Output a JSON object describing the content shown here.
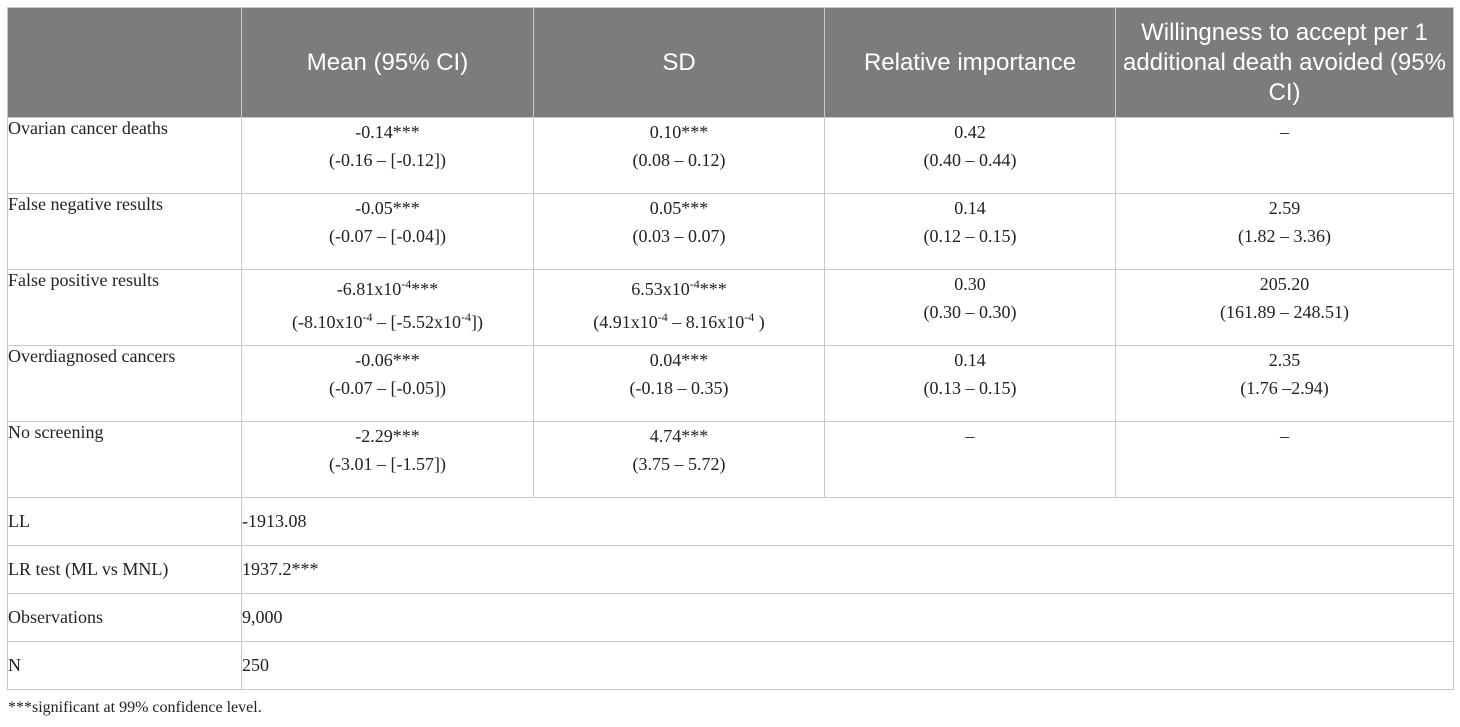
{
  "table": {
    "headers": [
      "",
      "Mean (95% CI)",
      "SD",
      "Relative importance",
      "Willingness to accept per 1 additional death avoided (95% CI)"
    ],
    "rows": [
      {
        "label": "Ovarian cancer deaths",
        "mean": [
          "-0.14***",
          "(-0.16 – [-0.12])"
        ],
        "sd": [
          "0.10***",
          "(0.08 – 0.12)"
        ],
        "ri": [
          "0.42",
          "(0.40 – 0.44)"
        ],
        "wta": [
          "–",
          ""
        ]
      },
      {
        "label": "False negative results",
        "mean": [
          "-0.05***",
          "(-0.07 – [-0.04])"
        ],
        "sd": [
          "0.05***",
          "(0.03 – 0.07)"
        ],
        "ri": [
          "0.14",
          "(0.12 – 0.15)"
        ],
        "wta": [
          "2.59",
          "(1.82 – 3.36)"
        ]
      },
      {
        "label": "False positive results",
        "mean": [
          "-6.81x10-4***",
          "(-8.10x10-4 – [-5.52x10-4])"
        ],
        "sd": [
          "6.53x10-4***",
          "(4.91x10-4 – 8.16x10-4 )"
        ],
        "ri": [
          "0.30",
          "(0.30 – 0.30)"
        ],
        "wta": [
          "205.20",
          "(161.89 – 248.51)"
        ]
      },
      {
        "label": "Overdiagnosed cancers",
        "mean": [
          "-0.06***",
          "(-0.07 – [-0.05])"
        ],
        "sd": [
          "0.04***",
          "(-0.18 – 0.35)"
        ],
        "ri": [
          "0.14",
          "(0.13 – 0.15)"
        ],
        "wta": [
          "2.35",
          "(1.76 –2.94)"
        ]
      },
      {
        "label": "No screening",
        "mean": [
          "-2.29***",
          "(-3.01 – [-1.57])"
        ],
        "sd": [
          "4.74***",
          "(3.75 – 5.72)"
        ],
        "ri": [
          "–",
          ""
        ],
        "wta": [
          "–",
          ""
        ]
      }
    ],
    "stats": [
      {
        "label": "LL",
        "value": "-1913.08"
      },
      {
        "label": "LR test (ML vs MNL)",
        "value": "1937.2***"
      },
      {
        "label": "Observations",
        "value": "9,000"
      },
      {
        "label": "N",
        "value": "250"
      }
    ]
  },
  "footnote": "***significant at 99% confidence level."
}
